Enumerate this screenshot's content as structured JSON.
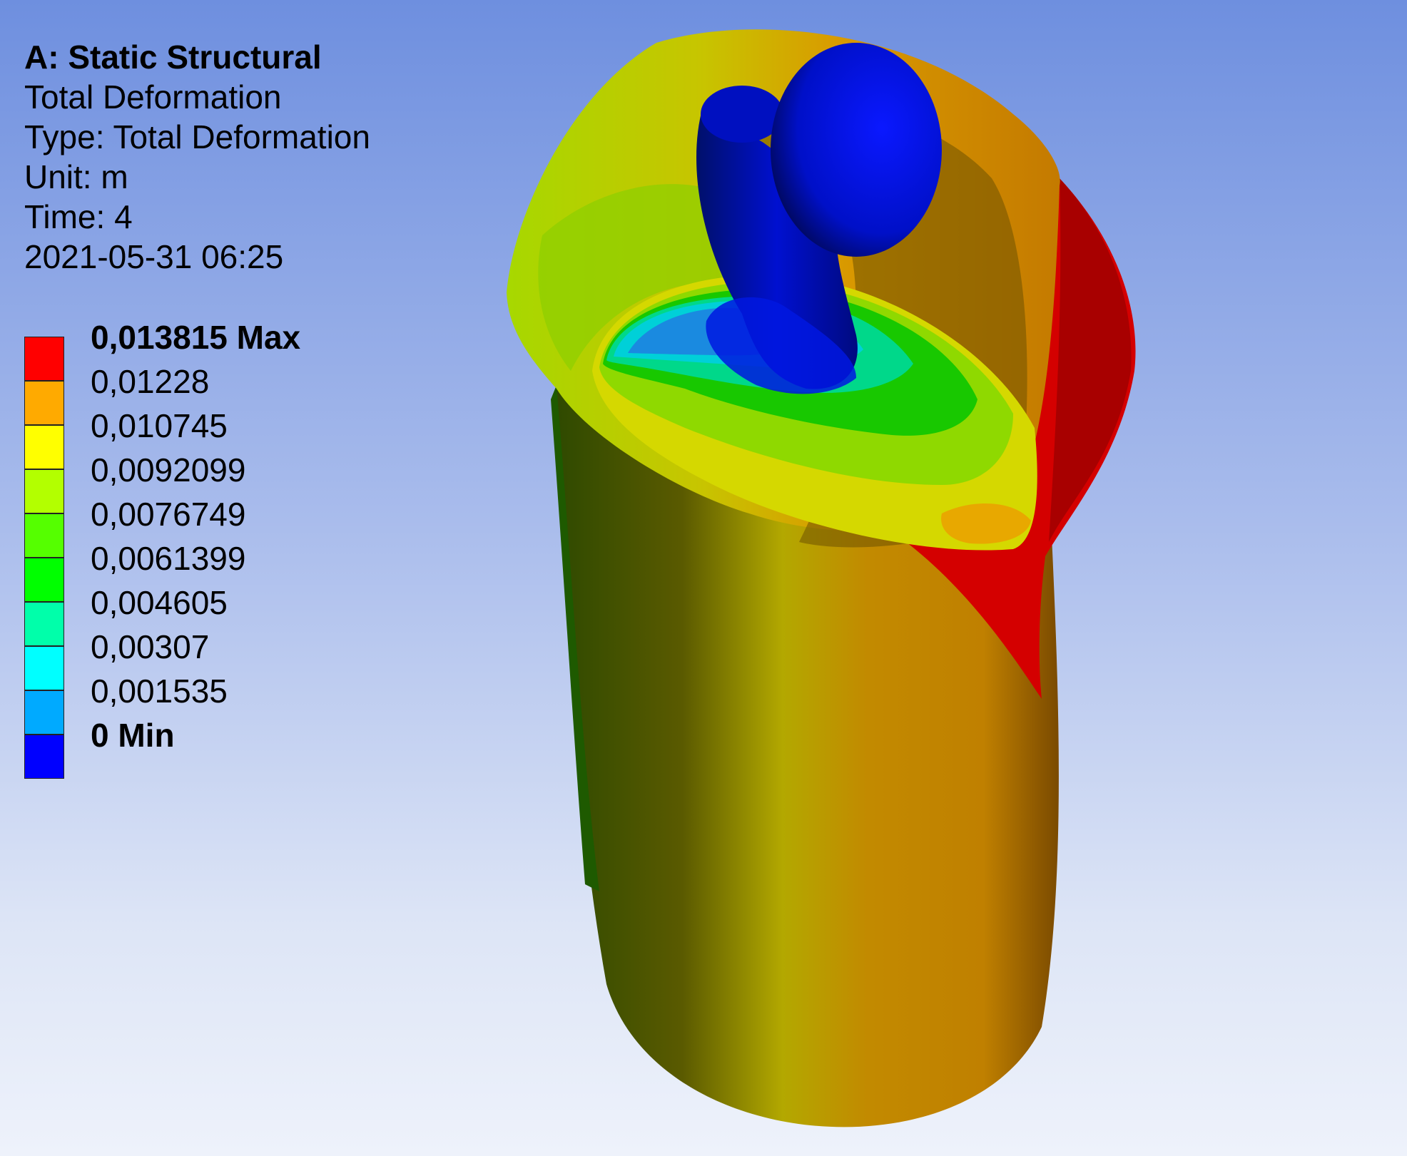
{
  "header": {
    "system": "A: Static Structural",
    "result": "Total Deformation",
    "type": "Type: Total Deformation",
    "unit": "Unit: m",
    "time": "Time: 4",
    "timestamp": "2021-05-31 06:25"
  },
  "legend": {
    "labels": [
      "0,013815 Max",
      "0,01228",
      "0,010745",
      "0,0092099",
      "0,0076749",
      "0,0061399",
      "0,004605",
      "0,00307",
      "0,001535",
      "0 Min"
    ],
    "colors": [
      "#ff0000",
      "#ffaa00",
      "#ffff00",
      "#b3ff00",
      "#55ff00",
      "#00ff00",
      "#00ffaa",
      "#00ffff",
      "#00aaff",
      "#0000ff"
    ]
  },
  "colors": {
    "background_top": "#6e8fdf",
    "background_bottom": "#eef2fb"
  }
}
